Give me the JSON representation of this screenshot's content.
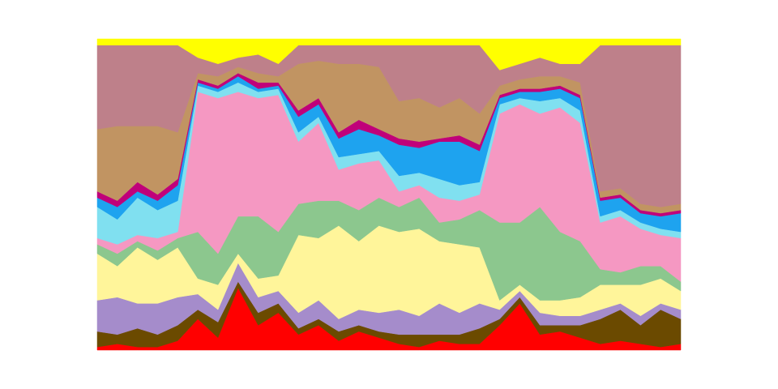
{
  "chart_data": {
    "type": "stacked_area",
    "categories": [
      null,
      null,
      null,
      null,
      null,
      null,
      null,
      null,
      null,
      null,
      null,
      null,
      null,
      null,
      null,
      null,
      null,
      null,
      null,
      null,
      null,
      null,
      null,
      null,
      null,
      null,
      null,
      null,
      null,
      null
    ],
    "ylim": [
      0,
      100
    ],
    "series": [
      {
        "color": "#ff0000",
        "values": [
          1,
          2,
          1,
          1,
          3,
          10,
          4,
          20,
          8,
          12,
          5,
          8,
          3,
          6,
          4,
          2,
          1,
          3,
          2,
          2,
          8,
          15,
          5,
          6,
          4,
          2,
          3,
          2,
          1,
          2
        ]
      },
      {
        "color": "#6b4a00",
        "values": [
          5,
          3,
          6,
          4,
          5,
          3,
          5,
          2,
          4,
          3,
          2,
          2,
          3,
          2,
          2,
          3,
          4,
          2,
          3,
          5,
          2,
          2,
          3,
          2,
          4,
          8,
          10,
          6,
          12,
          8
        ]
      },
      {
        "color": "#a58ccb",
        "values": [
          10,
          12,
          8,
          10,
          9,
          5,
          4,
          6,
          5,
          4,
          5,
          6,
          4,
          5,
          6,
          8,
          6,
          10,
          7,
          8,
          3,
          2,
          4,
          3,
          3,
          3,
          2,
          3,
          2,
          3
        ]
      },
      {
        "color": "#fff59a",
        "values": [
          15,
          10,
          18,
          14,
          16,
          5,
          8,
          3,
          6,
          5,
          25,
          20,
          30,
          22,
          28,
          25,
          28,
          20,
          22,
          18,
          3,
          2,
          4,
          5,
          6,
          8,
          6,
          10,
          8,
          6
        ]
      },
      {
        "color": "#8cc78e",
        "values": [
          3,
          4,
          2,
          3,
          3,
          15,
          10,
          12,
          20,
          14,
          10,
          12,
          8,
          10,
          9,
          8,
          10,
          6,
          8,
          12,
          25,
          20,
          30,
          22,
          18,
          5,
          4,
          6,
          4,
          3
        ]
      },
      {
        "color": "#f598c2",
        "values": [
          2,
          3,
          2,
          4,
          2,
          45,
          50,
          40,
          38,
          44,
          20,
          25,
          10,
          15,
          12,
          5,
          4,
          8,
          6,
          5,
          35,
          38,
          30,
          40,
          38,
          15,
          18,
          12,
          10,
          14
        ]
      },
      {
        "color": "#80e0f0",
        "values": [
          10,
          8,
          12,
          9,
          10,
          2,
          2,
          3,
          2,
          2,
          3,
          2,
          4,
          3,
          3,
          5,
          4,
          6,
          5,
          4,
          3,
          2,
          4,
          3,
          4,
          2,
          2,
          2,
          2,
          2
        ]
      },
      {
        "color": "#1ea3ef",
        "values": [
          3,
          4,
          2,
          3,
          5,
          1,
          1,
          2,
          1,
          1,
          5,
          4,
          6,
          8,
          5,
          10,
          8,
          12,
          14,
          10,
          2,
          2,
          3,
          3,
          4,
          5,
          4,
          3,
          4,
          6
        ]
      },
      {
        "color": "#c0007a",
        "values": [
          2,
          2,
          3,
          2,
          2,
          1,
          1,
          1,
          2,
          1,
          2,
          2,
          2,
          3,
          2,
          2,
          2,
          1,
          2,
          2,
          1,
          1,
          1,
          1,
          1,
          1,
          1,
          1,
          1,
          1
        ]
      },
      {
        "color": "#c19462",
        "values": [
          20,
          24,
          18,
          22,
          15,
          2,
          3,
          2,
          3,
          2,
          15,
          12,
          22,
          18,
          20,
          12,
          14,
          10,
          12,
          10,
          3,
          3,
          4,
          3,
          4,
          2,
          2,
          2,
          2,
          2
        ]
      },
      {
        "color": "#be808a",
        "values": [
          27,
          26,
          26,
          26,
          28,
          5,
          4,
          3,
          6,
          4,
          6,
          5,
          6,
          6,
          7,
          18,
          17,
          20,
          17,
          22,
          5,
          5,
          6,
          4,
          6,
          47,
          46,
          51,
          52,
          51
        ]
      },
      {
        "color": "#ffff00",
        "values": [
          2,
          2,
          2,
          2,
          2,
          6,
          8,
          6,
          5,
          8,
          2,
          2,
          2,
          2,
          2,
          2,
          2,
          2,
          2,
          2,
          10,
          8,
          6,
          8,
          8,
          2,
          2,
          2,
          2,
          2
        ]
      }
    ]
  }
}
